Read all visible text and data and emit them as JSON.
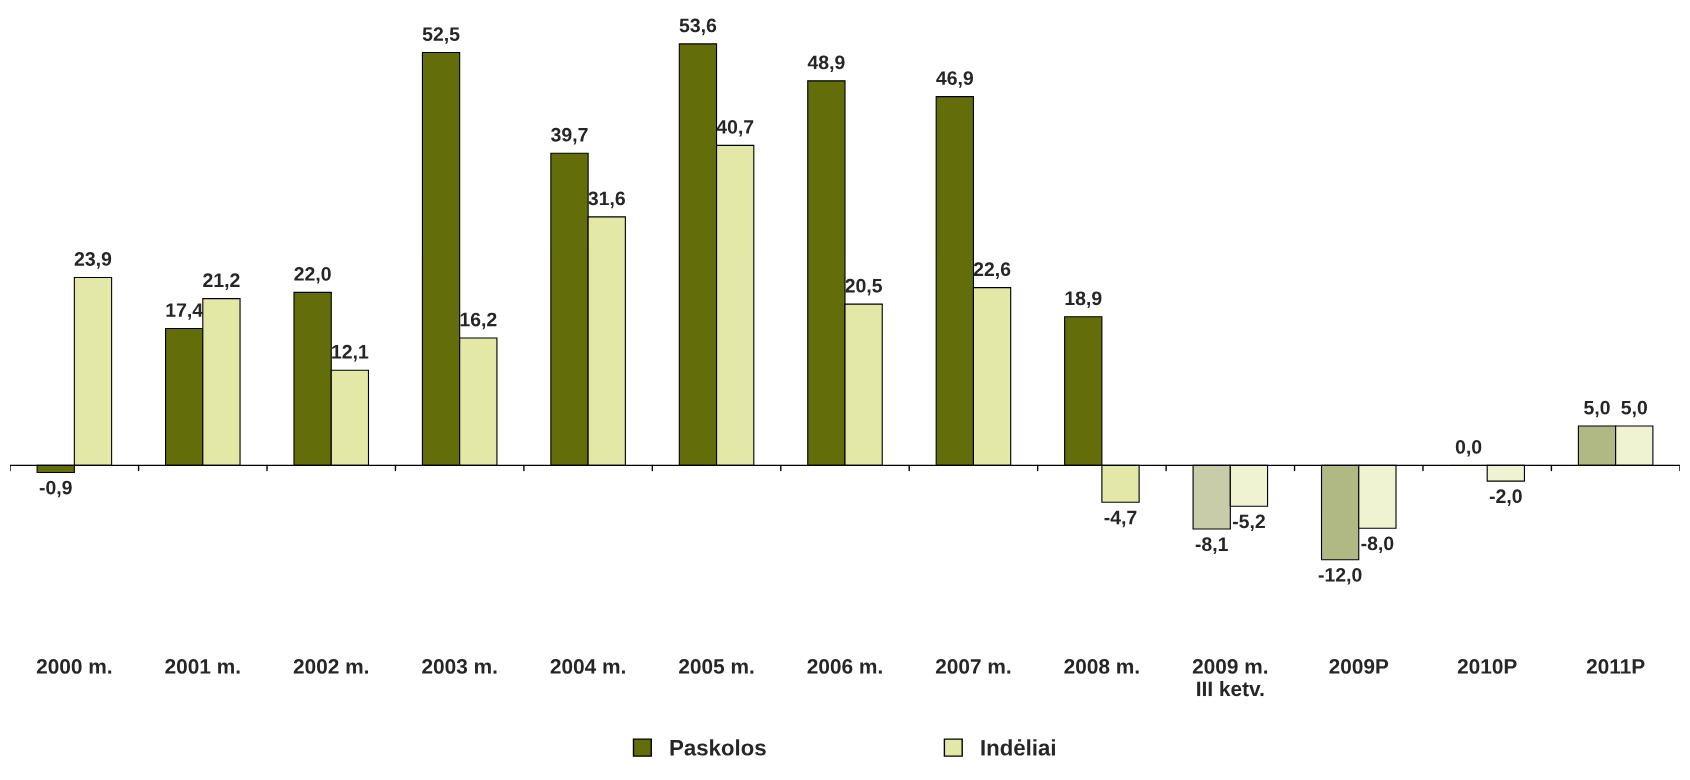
{
  "chart_data": {
    "type": "bar",
    "categories": [
      "2000 m.",
      "2001 m.",
      "2002 m.",
      "2003 m.",
      "2004 m.",
      "2005 m.",
      "2006 m.",
      "2007 m.",
      "2008 m.",
      "2009 m.\nIII ketv.",
      "2009P",
      "2010P",
      "2011P"
    ],
    "series": [
      {
        "name": "Paskolos",
        "color": "#636e0a",
        "colors": [
          "#636e0a",
          "#636e0a",
          "#636e0a",
          "#636e0a",
          "#636e0a",
          "#636e0a",
          "#636e0a",
          "#636e0a",
          "#636e0a",
          "#c8cca8",
          "#b0b884",
          "#b0b884",
          "#b0b884"
        ],
        "values": [
          -0.9,
          17.4,
          22.0,
          52.5,
          39.7,
          53.6,
          48.9,
          46.9,
          18.9,
          -8.1,
          -12.0,
          0.0,
          5.0
        ],
        "value_labels": [
          "-0,9",
          "17,4",
          "22,0",
          "52,5",
          "39,7",
          "53,6",
          "48,9",
          "46,9",
          "18,9",
          "-8,1",
          "-12,0",
          "0,0",
          "5,0"
        ]
      },
      {
        "name": "Indėliai",
        "color": "#e3e8a6",
        "colors": [
          "#e3e8a6",
          "#e3e8a6",
          "#e3e8a6",
          "#e3e8a6",
          "#e3e8a6",
          "#e3e8a6",
          "#e3e8a6",
          "#e3e8a6",
          "#e3e8a6",
          "#f0f3d2",
          "#f0f3d2",
          "#f0f3d2",
          "#f0f3d2"
        ],
        "values": [
          23.9,
          21.2,
          12.1,
          16.2,
          31.6,
          40.7,
          20.5,
          22.6,
          -4.7,
          -5.2,
          -8.0,
          -2.0,
          5.0
        ],
        "value_labels": [
          "23,9",
          "21,2",
          "12,1",
          "16,2",
          "31,6",
          "40,7",
          "20,5",
          "22,6",
          "-4,7",
          "-5,2",
          "-8,0",
          "-2,0",
          "5,0"
        ]
      }
    ],
    "legend": "bottom",
    "grid": false
  }
}
